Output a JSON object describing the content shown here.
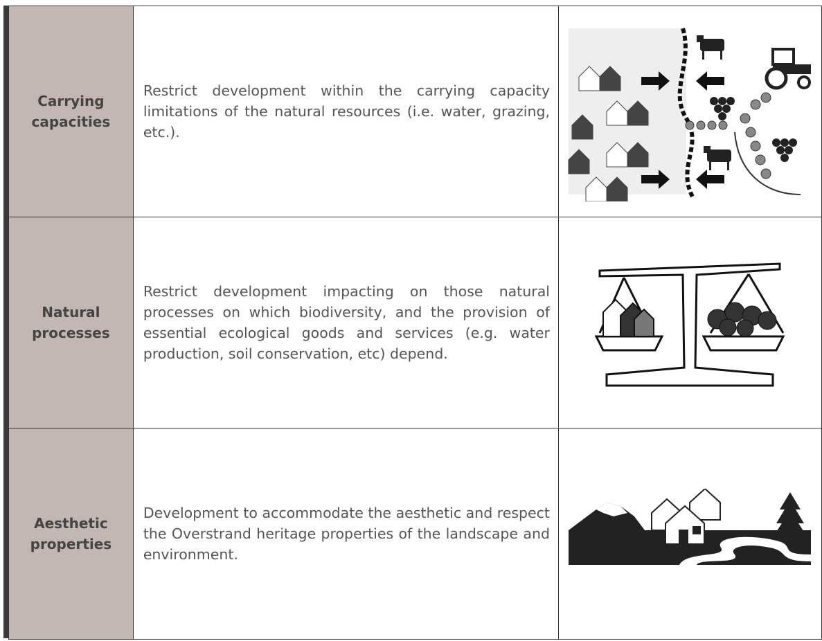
{
  "table": {
    "rows": [
      {
        "label": "Carrying capacities",
        "description": "Restrict development within the carrying capacity limitations of the natural resources (i.e. water, grazing, etc.)."
      },
      {
        "label": "Natural processes",
        "description": "Restrict development impacting on those natural processes on which biodiversity, and the provision of essential ecological goods and services (e.g. water production, soil conservation, etc) depend."
      },
      {
        "label": "Aesthetic properties",
        "description": "Development to accommodate the aesthetic and respect the Overstrand heritage properties of the landscape and environment."
      }
    ]
  }
}
